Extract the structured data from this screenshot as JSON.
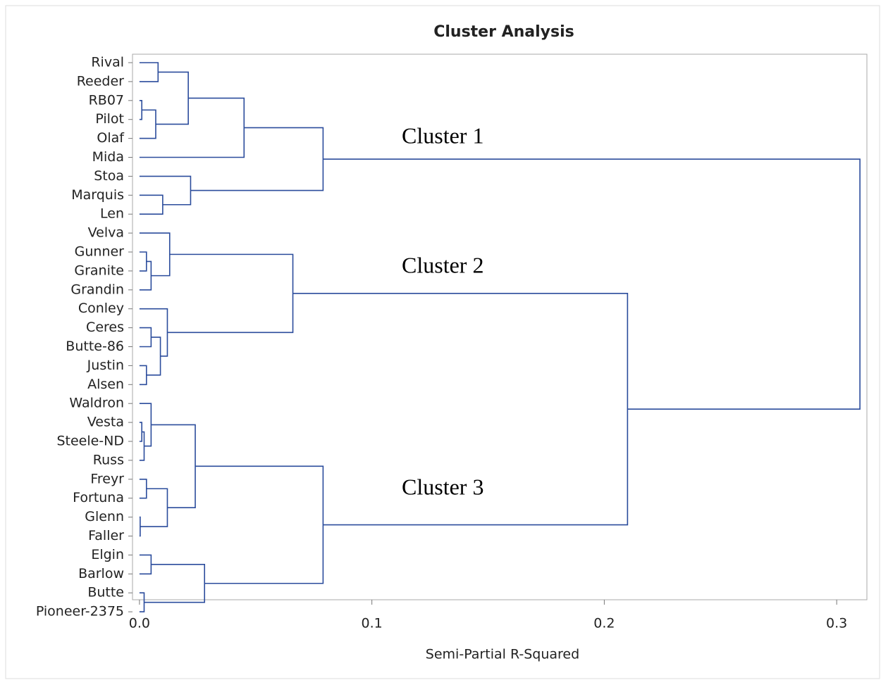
{
  "chart_data": {
    "type": "dendrogram",
    "title": "Cluster Analysis",
    "xlabel": "Semi-Partial R-Squared",
    "color": "#2b4c9c",
    "orientation": "horizontal",
    "xlim": [
      -0.003,
      0.313
    ],
    "xticks": [
      {
        "value": 0,
        "label": "0.0"
      },
      0.1,
      0.2,
      0.3
    ],
    "annotations": [
      "Cluster 1",
      "Cluster 2",
      "Cluster 3"
    ],
    "tree": {
      "height": 0.31,
      "children": [
        {
          "height": 0.079,
          "children": [
            {
              "height": 0.045,
              "children": [
                {
                  "height": 0.021,
                  "children": [
                    {
                      "height": 0.008,
                      "children": [
                        "Rival",
                        "Reeder"
                      ]
                    },
                    {
                      "height": 0.007,
                      "children": [
                        {
                          "height": 0.001,
                          "children": [
                            "RB07",
                            "Pilot"
                          ]
                        },
                        "Olaf"
                      ]
                    }
                  ]
                },
                "Mida"
              ]
            },
            {
              "height": 0.022,
              "children": [
                "Stoa",
                {
                  "height": 0.01,
                  "children": [
                    "Marquis",
                    "Len"
                  ]
                }
              ]
            }
          ]
        },
        {
          "height": 0.21,
          "children": [
            {
              "height": 0.066,
              "children": [
                {
                  "height": 0.013,
                  "children": [
                    "Velva",
                    {
                      "height": 0.005,
                      "children": [
                        {
                          "height": 0.003,
                          "children": [
                            "Gunner",
                            "Granite"
                          ]
                        },
                        "Grandin"
                      ]
                    }
                  ]
                },
                {
                  "height": 0.012,
                  "children": [
                    "Conley",
                    {
                      "height": 0.009,
                      "children": [
                        {
                          "height": 0.005,
                          "children": [
                            "Ceres",
                            "Butte-86"
                          ]
                        },
                        {
                          "height": 0.003,
                          "children": [
                            "Justin",
                            "Alsen"
                          ]
                        }
                      ]
                    }
                  ]
                }
              ]
            },
            {
              "height": 0.079,
              "children": [
                {
                  "height": 0.024,
                  "children": [
                    {
                      "height": 0.005,
                      "children": [
                        "Waldron",
                        {
                          "height": 0.002,
                          "children": [
                            {
                              "height": 0.001,
                              "children": [
                                "Vesta",
                                "Steele-ND"
                              ]
                            },
                            "Russ"
                          ]
                        }
                      ]
                    },
                    {
                      "height": 0.012,
                      "children": [
                        {
                          "height": 0.003,
                          "children": [
                            "Freyr",
                            "Fortuna"
                          ]
                        },
                        {
                          "height": 0.0003,
                          "children": [
                            "Glenn",
                            "Faller"
                          ]
                        }
                      ]
                    }
                  ]
                },
                {
                  "height": 0.028,
                  "children": [
                    {
                      "height": 0.005,
                      "children": [
                        "Elgin",
                        "Barlow"
                      ]
                    },
                    {
                      "height": 0.002,
                      "children": [
                        "Butte",
                        "Pioneer-2375"
                      ]
                    }
                  ]
                }
              ]
            }
          ]
        }
      ]
    }
  }
}
